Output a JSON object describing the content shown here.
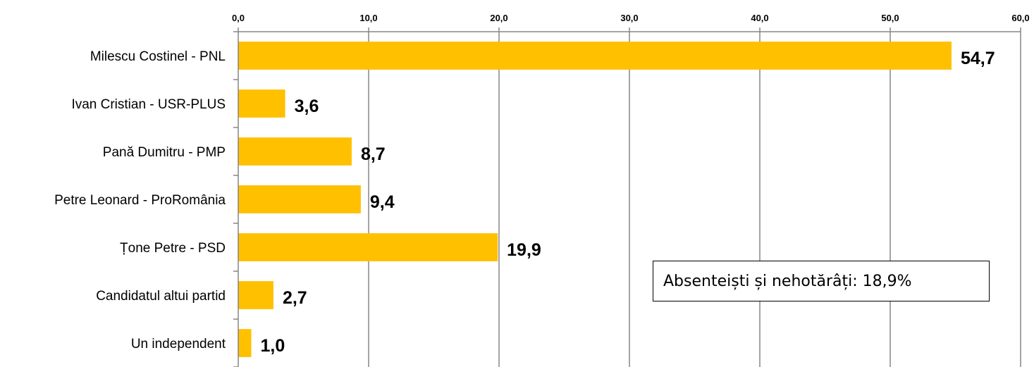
{
  "chart_data": {
    "type": "bar",
    "orientation": "horizontal",
    "categories": [
      "Milescu Costinel - PNL",
      "Ivan Cristian - USR-PLUS",
      "Pană Dumitru - PMP",
      "Petre Leonard - ProRomânia",
      "Țone Petre - PSD",
      "Candidatul altui partid",
      "Un independent"
    ],
    "values": [
      54.7,
      3.6,
      8.7,
      9.4,
      19.9,
      2.7,
      1.0
    ],
    "value_labels": [
      "54,7",
      "3,6",
      "8,7",
      "9,4",
      "19,9",
      "2,7",
      "1,0"
    ],
    "xlim": [
      0,
      60
    ],
    "xticks": [
      0,
      10,
      20,
      30,
      40,
      50,
      60
    ],
    "xtick_labels": [
      "0,0",
      "10,0",
      "20,0",
      "30,0",
      "40,0",
      "50,0",
      "60,0"
    ],
    "x_axis_position": "top",
    "grid": true,
    "legend": "none",
    "title": "",
    "xlabel": "",
    "ylabel": "",
    "bar_color": "#FFC000",
    "grid_color": "#868686",
    "annotation": "Absenteiști și nehotărâți: 18,9%"
  }
}
